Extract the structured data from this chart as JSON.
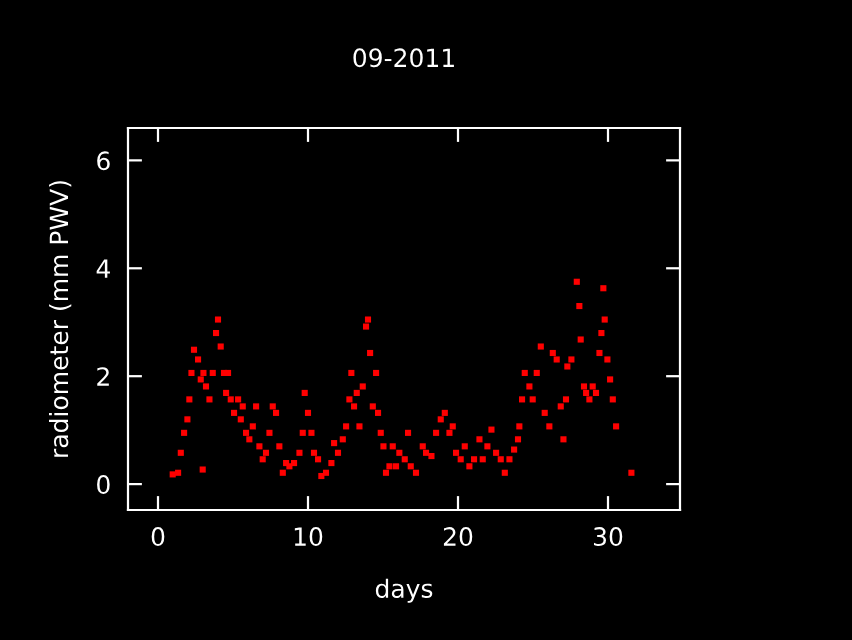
{
  "chart_data": {
    "type": "scatter",
    "title": "09-2011",
    "xlabel": "days",
    "ylabel": "radiometer (mm PWV)",
    "xlim": [
      -2,
      34.8
    ],
    "ylim": [
      -0.48,
      6.6
    ],
    "xticks": [
      0,
      10,
      20,
      30
    ],
    "yticks": [
      0,
      2,
      4,
      6
    ],
    "grid": false,
    "legend": false,
    "marker": "square",
    "series": [
      {
        "color": "#ff0000",
        "x": [
          0.98,
          1.34,
          1.52,
          1.74,
          1.96,
          2.09,
          2.23,
          2.4,
          2.67,
          2.85,
          2.98,
          3.03,
          3.2,
          3.43,
          3.65,
          3.87,
          4.0,
          4.18,
          4.4,
          4.54,
          4.67,
          4.85,
          5.07,
          5.34,
          5.52,
          5.65,
          5.87,
          6.09,
          6.32,
          6.54,
          6.76,
          6.98,
          7.2,
          7.43,
          7.65,
          7.87,
          8.09,
          8.32,
          8.54,
          8.76,
          9.07,
          9.43,
          9.65,
          9.78,
          10.0,
          10.23,
          10.4,
          10.67,
          10.89,
          11.2,
          11.56,
          11.74,
          12.0,
          12.32,
          12.54,
          12.76,
          12.89,
          13.07,
          13.25,
          13.43,
          13.65,
          13.87,
          14.0,
          14.14,
          14.32,
          14.54,
          14.67,
          14.85,
          15.03,
          15.2,
          15.43,
          15.65,
          15.87,
          16.09,
          16.45,
          16.67,
          16.85,
          17.2,
          17.65,
          17.87,
          18.23,
          18.54,
          18.85,
          19.12,
          19.43,
          19.65,
          19.87,
          20.18,
          20.45,
          20.76,
          21.07,
          21.43,
          21.65,
          21.96,
          22.23,
          22.54,
          22.85,
          23.12,
          23.43,
          23.74,
          24.0,
          24.09,
          24.27,
          24.45,
          24.76,
          24.98,
          25.25,
          25.52,
          25.78,
          26.09,
          26.32,
          26.58,
          26.85,
          27.03,
          27.2,
          27.29,
          27.56,
          27.92,
          28.09,
          28.18,
          28.4,
          28.54,
          28.76,
          28.98,
          29.2,
          29.43,
          29.56,
          29.69,
          29.78,
          29.96,
          30.14,
          30.32,
          30.54,
          31.56
        ],
        "values": [
          0.18,
          0.21,
          0.58,
          0.95,
          1.2,
          1.57,
          2.06,
          2.49,
          2.31,
          1.94,
          0.27,
          2.06,
          1.81,
          1.57,
          2.06,
          2.8,
          3.05,
          2.55,
          2.06,
          1.69,
          2.06,
          1.57,
          1.32,
          1.57,
          1.2,
          1.44,
          0.95,
          0.83,
          1.07,
          1.44,
          0.7,
          0.46,
          0.58,
          0.95,
          1.44,
          1.32,
          0.7,
          0.21,
          0.39,
          0.33,
          0.39,
          0.58,
          0.95,
          1.69,
          1.32,
          0.95,
          0.58,
          0.46,
          0.15,
          0.21,
          0.39,
          0.76,
          0.58,
          0.83,
          1.07,
          1.57,
          2.06,
          1.44,
          1.69,
          1.07,
          1.81,
          2.92,
          3.05,
          2.43,
          1.44,
          2.06,
          1.32,
          0.95,
          0.7,
          0.21,
          0.33,
          0.7,
          0.33,
          0.58,
          0.46,
          0.95,
          0.33,
          0.21,
          0.7,
          0.58,
          0.52,
          0.95,
          1.2,
          1.32,
          0.95,
          1.07,
          0.58,
          0.46,
          0.7,
          0.33,
          0.46,
          0.83,
          0.46,
          0.7,
          1.01,
          0.58,
          0.46,
          0.21,
          0.46,
          0.64,
          0.83,
          1.07,
          1.57,
          2.06,
          1.81,
          1.57,
          2.06,
          2.55,
          1.32,
          1.07,
          2.43,
          2.31,
          1.44,
          0.83,
          1.57,
          2.18,
          2.31,
          3.75,
          3.3,
          2.68,
          1.81,
          1.69,
          1.57,
          1.81,
          1.69,
          2.43,
          2.8,
          3.63,
          3.05,
          2.31,
          1.94,
          1.57,
          1.07,
          0.21
        ]
      }
    ]
  }
}
